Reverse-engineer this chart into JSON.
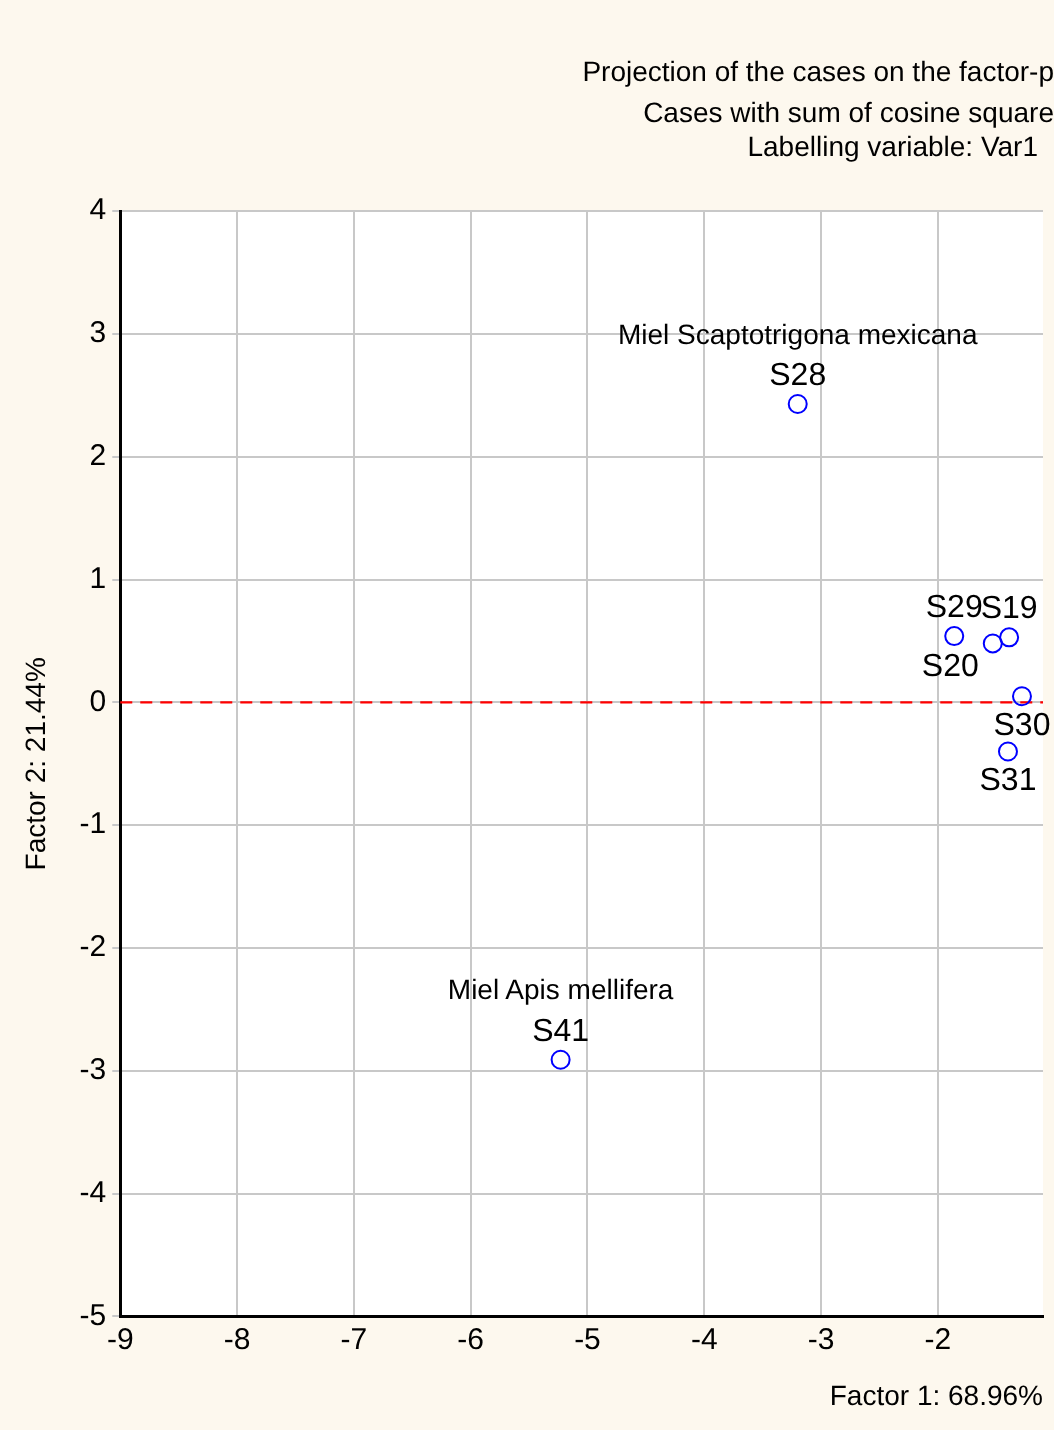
{
  "chart_data": {
    "type": "scatter",
    "title": "Projection of the cases on the factor-p",
    "subtitle": "Cases with sum of cosine square",
    "annotations": [
      "Labelling variable: Var1",
      {
        "text": "Miel Scaptotrigona mexicana",
        "x": -3.2,
        "y": 2.43
      },
      {
        "text": "Miel Apis mellifera",
        "x": -5.23,
        "y": -2.91
      }
    ],
    "xlabel": "Factor 1: 68.96%",
    "ylabel": "Factor 2: 21.44%",
    "series": [
      {
        "color": "#0000ff",
        "x": [
          -3.2,
          -5.23,
          -1.86,
          -1.53,
          -1.39,
          -1.28,
          -1.4
        ],
        "values": [
          2.43,
          -2.91,
          0.54,
          0.48,
          0.53,
          0.05,
          -0.4
        ],
        "value_labels": [
          "S28",
          "S41",
          "S29",
          "S20",
          "S19",
          "S30",
          "S31"
        ]
      }
    ],
    "xlim": [
      -9,
      -1.1
    ],
    "xticks": [
      -9,
      -8,
      -7,
      -6,
      -5,
      -4,
      -3,
      -2
    ],
    "ylim": [
      -5,
      4
    ],
    "yticks": [
      -5,
      -4,
      -3,
      -2,
      -1,
      0,
      1,
      2,
      3,
      4
    ],
    "ref_lines": [
      {
        "axis": "y",
        "value": 0,
        "color": "#ff0000",
        "line_style": "dashed"
      }
    ],
    "grid": true,
    "marker": "circle",
    "legend": false
  }
}
